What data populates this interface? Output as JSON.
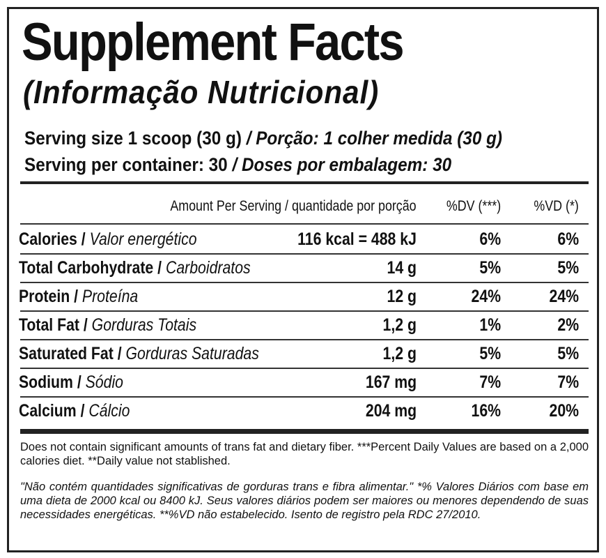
{
  "header": {
    "title": "Supplement Facts",
    "subtitle": "(Informação Nutricional)"
  },
  "serving": [
    {
      "en": "Serving size 1 scoop (30 g)",
      "pt": "/ Porção: 1 colher medida (30 g)"
    },
    {
      "en": "Serving per container: 30",
      "pt": "/ Doses por embalagem: 30"
    }
  ],
  "table": {
    "columns": [
      "Amount Per Serving / quantidade por porção",
      "%DV (***)",
      "%VD (*)"
    ],
    "rows": [
      {
        "name": "Calories /",
        "name_pt": "Valor energético",
        "amount": "116 kcal = 488 kJ",
        "dv": "6%",
        "vd": "6%"
      },
      {
        "name": "Total Carbohydrate /",
        "name_pt": "Carboidratos",
        "amount": "14 g",
        "dv": "5%",
        "vd": "5%"
      },
      {
        "name": "Protein /",
        "name_pt": "Proteína",
        "amount": "12 g",
        "dv": "24%",
        "vd": "24%"
      },
      {
        "name": "Total Fat /",
        "name_pt": "Gorduras Totais",
        "amount": "1,2 g",
        "dv": "1%",
        "vd": "2%"
      },
      {
        "name": "Saturated Fat /",
        "name_pt": "Gorduras Saturadas",
        "amount": "1,2 g",
        "dv": "5%",
        "vd": "5%"
      },
      {
        "name": "Sodium /",
        "name_pt": "Sódio",
        "amount": "167 mg",
        "dv": "7%",
        "vd": "7%"
      },
      {
        "name": "Calcium /",
        "name_pt": "Cálcio",
        "amount": "204 mg",
        "dv": "16%",
        "vd": "20%"
      }
    ]
  },
  "footnotes": {
    "en": "Does not contain significant amounts of trans fat and dietary fiber. ***Percent Daily Values are based on a 2,000 calories diet. **Daily value not stablished.",
    "pt": "\"Não contém quantidades significativas de gorduras trans e fibra alimentar.\" *% Valores Diários com base em uma dieta de 2000 kcal ou 8400 kJ. Seus valores diários podem ser maiores ou menores dependendo de suas necessidades energéticas. **%VD não estabelecido. Isento de registro pela RDC 27/2010."
  }
}
